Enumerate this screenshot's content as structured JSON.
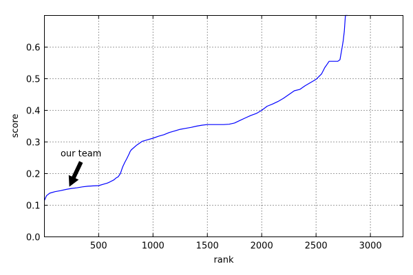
{
  "chart_data": {
    "type": "line",
    "title": "",
    "xlabel": "rank",
    "ylabel": "score",
    "xlim": [
      1,
      3300
    ],
    "ylim": [
      0.0,
      0.7
    ],
    "xticks": [
      500,
      1000,
      1500,
      2000,
      2500,
      3000
    ],
    "xtick_labels": [
      "500",
      "1000",
      "1500",
      "2000",
      "2500",
      "3000"
    ],
    "yticks": [
      0.0,
      0.1,
      0.2,
      0.3,
      0.4,
      0.5,
      0.6
    ],
    "ytick_labels": [
      "0.0",
      "0.1",
      "0.2",
      "0.3",
      "0.4",
      "0.5",
      "0.6"
    ],
    "grid": true,
    "line_color": "#0000ff",
    "series": [
      {
        "x": [
          1,
          20,
          50,
          100,
          150,
          200,
          250,
          300,
          350,
          400,
          450,
          500,
          550,
          580,
          600,
          640,
          660,
          680,
          700,
          720,
          740,
          760,
          780,
          790,
          800,
          850,
          900,
          950,
          1000,
          1050,
          1100,
          1150,
          1200,
          1250,
          1300,
          1350,
          1400,
          1450,
          1500,
          1550,
          1600,
          1650,
          1700,
          1750,
          1800,
          1850,
          1900,
          1950,
          2000,
          2050,
          2100,
          2150,
          2200,
          2250,
          2300,
          2350,
          2400,
          2450,
          2500,
          2550,
          2580,
          2600,
          2620,
          2640,
          2680,
          2700,
          2720,
          2730,
          2740,
          2750,
          2760,
          2770,
          2780,
          2790
        ],
        "y": [
          0.115,
          0.13,
          0.138,
          0.143,
          0.146,
          0.15,
          0.153,
          0.155,
          0.158,
          0.16,
          0.161,
          0.162,
          0.167,
          0.17,
          0.173,
          0.18,
          0.186,
          0.19,
          0.2,
          0.22,
          0.235,
          0.248,
          0.262,
          0.27,
          0.275,
          0.29,
          0.302,
          0.307,
          0.312,
          0.318,
          0.323,
          0.33,
          0.335,
          0.34,
          0.343,
          0.346,
          0.35,
          0.353,
          0.355,
          0.355,
          0.355,
          0.355,
          0.356,
          0.36,
          0.368,
          0.376,
          0.384,
          0.39,
          0.4,
          0.413,
          0.42,
          0.428,
          0.438,
          0.45,
          0.462,
          0.466,
          0.478,
          0.488,
          0.498,
          0.515,
          0.535,
          0.545,
          0.555,
          0.555,
          0.555,
          0.555,
          0.56,
          0.58,
          0.6,
          0.62,
          0.65,
          0.7,
          0.7,
          0.7
        ]
      }
    ],
    "annotation": {
      "text": "our team",
      "target_x": 230,
      "target_y": 0.152
    }
  }
}
